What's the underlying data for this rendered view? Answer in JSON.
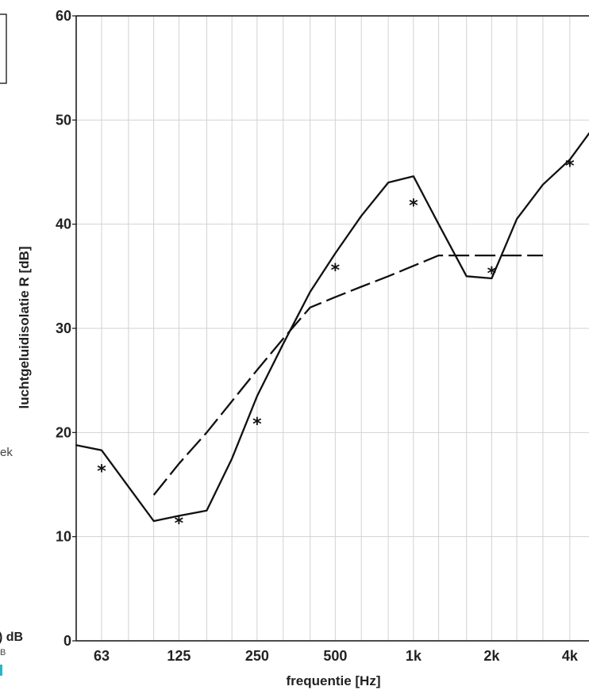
{
  "chart_data": {
    "type": "line",
    "title": "",
    "xlabel": "frequentie [Hz]",
    "ylabel": "luchtgeluidisolatie R [dB]",
    "x_scale": "log2",
    "ylim": [
      0,
      60
    ],
    "yticks": [
      0,
      10,
      20,
      30,
      40,
      50,
      60
    ],
    "xticks": [
      {
        "x": 63,
        "label": "63"
      },
      {
        "x": 125,
        "label": "125"
      },
      {
        "x": 250,
        "label": "250"
      },
      {
        "x": 500,
        "label": "500"
      },
      {
        "x": 1000,
        "label": "1k"
      },
      {
        "x": 2000,
        "label": "2k"
      },
      {
        "x": 4000,
        "label": "4k"
      }
    ],
    "grid": true,
    "series": [
      {
        "style": "solid",
        "color": "#111111",
        "x": [
          50,
          63,
          100,
          125,
          160,
          200,
          250,
          315,
          400,
          500,
          630,
          800,
          1000,
          1250,
          1600,
          2000,
          2500,
          3150,
          4000,
          5000
        ],
        "y": [
          18.8,
          18.3,
          11.5,
          12.0,
          12.5,
          17.5,
          23.5,
          28.5,
          33.5,
          37.2,
          40.8,
          44.0,
          44.6,
          40.0,
          35.0,
          34.8,
          40.5,
          43.8,
          46.2,
          49.5
        ]
      },
      {
        "style": "dashed",
        "color": "#111111",
        "x": [
          100,
          125,
          160,
          200,
          250,
          315,
          400,
          500,
          630,
          800,
          1000,
          1250,
          1600,
          2000,
          2500,
          3150
        ],
        "y": [
          14.0,
          17.0,
          20.0,
          23.0,
          26.0,
          29.0,
          32.0,
          33.0,
          34.0,
          35.0,
          36.0,
          37.0,
          37.0,
          37.0,
          37.0,
          37.0
        ]
      },
      {
        "style": "markers",
        "marker": "*",
        "color": "#111111",
        "x": [
          63,
          125,
          250,
          500,
          1000,
          2000,
          4000
        ],
        "y": [
          16.5,
          11.5,
          21.0,
          35.8,
          42.0,
          35.5,
          45.8
        ]
      }
    ]
  },
  "fragments": {
    "left_text_1": "ek",
    "left_text_2": ") dB",
    "left_text_3": "B"
  }
}
